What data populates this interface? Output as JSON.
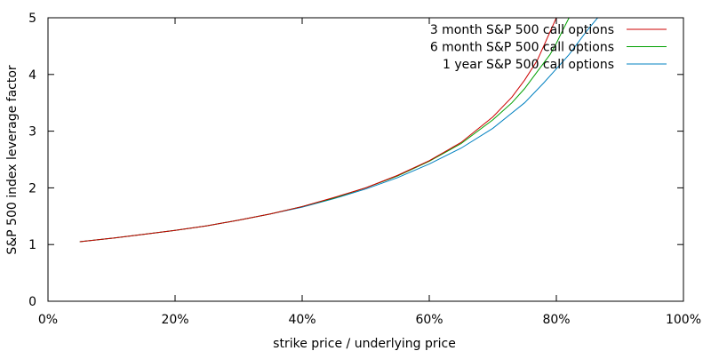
{
  "chart_data": {
    "type": "line",
    "title": "",
    "xlabel": "strike price / underlying price",
    "ylabel": "S&P 500 index leverage factor",
    "xlim": [
      0,
      100
    ],
    "ylim": [
      0,
      5
    ],
    "x_ticks": [
      0,
      20,
      40,
      60,
      80,
      100
    ],
    "x_tick_labels": [
      "0%",
      "20%",
      "40%",
      "60%",
      "80%",
      "100%"
    ],
    "y_ticks": [
      0,
      1,
      2,
      3,
      4,
      5
    ],
    "y_tick_labels": [
      "0",
      "1",
      "2",
      "3",
      "4",
      "5"
    ],
    "grid": false,
    "legend_position": "top-right",
    "series": [
      {
        "name": "3 month S&P 500 call options",
        "color": "#cc0000",
        "x": [
          5,
          10,
          15,
          20,
          25,
          30,
          35,
          40,
          45,
          50,
          55,
          60,
          65,
          70,
          73,
          75,
          77,
          78,
          79,
          80,
          80.5
        ],
        "y": [
          1.05,
          1.11,
          1.18,
          1.25,
          1.33,
          1.43,
          1.54,
          1.67,
          1.83,
          2.0,
          2.22,
          2.48,
          2.8,
          3.25,
          3.6,
          3.9,
          4.25,
          4.5,
          4.75,
          5.0,
          5.0
        ]
      },
      {
        "name": "6 month S&P 500 call options",
        "color": "#00a000",
        "x": [
          5,
          10,
          15,
          20,
          25,
          30,
          35,
          40,
          45,
          50,
          55,
          60,
          65,
          70,
          73,
          75,
          77,
          79,
          80,
          81,
          82
        ],
        "y": [
          1.05,
          1.11,
          1.18,
          1.25,
          1.33,
          1.43,
          1.54,
          1.67,
          1.82,
          2.0,
          2.21,
          2.47,
          2.78,
          3.2,
          3.5,
          3.75,
          4.05,
          4.35,
          4.55,
          4.78,
          5.0
        ]
      },
      {
        "name": "1 year S&P 500 call options",
        "color": "#0080c0",
        "x": [
          5,
          10,
          15,
          20,
          25,
          30,
          35,
          40,
          45,
          50,
          55,
          60,
          65,
          70,
          75,
          78,
          80,
          82,
          84,
          85,
          86.5
        ],
        "y": [
          1.05,
          1.11,
          1.18,
          1.25,
          1.33,
          1.43,
          1.54,
          1.66,
          1.81,
          1.98,
          2.18,
          2.42,
          2.7,
          3.05,
          3.5,
          3.85,
          4.1,
          4.35,
          4.65,
          4.8,
          5.0
        ]
      }
    ]
  }
}
